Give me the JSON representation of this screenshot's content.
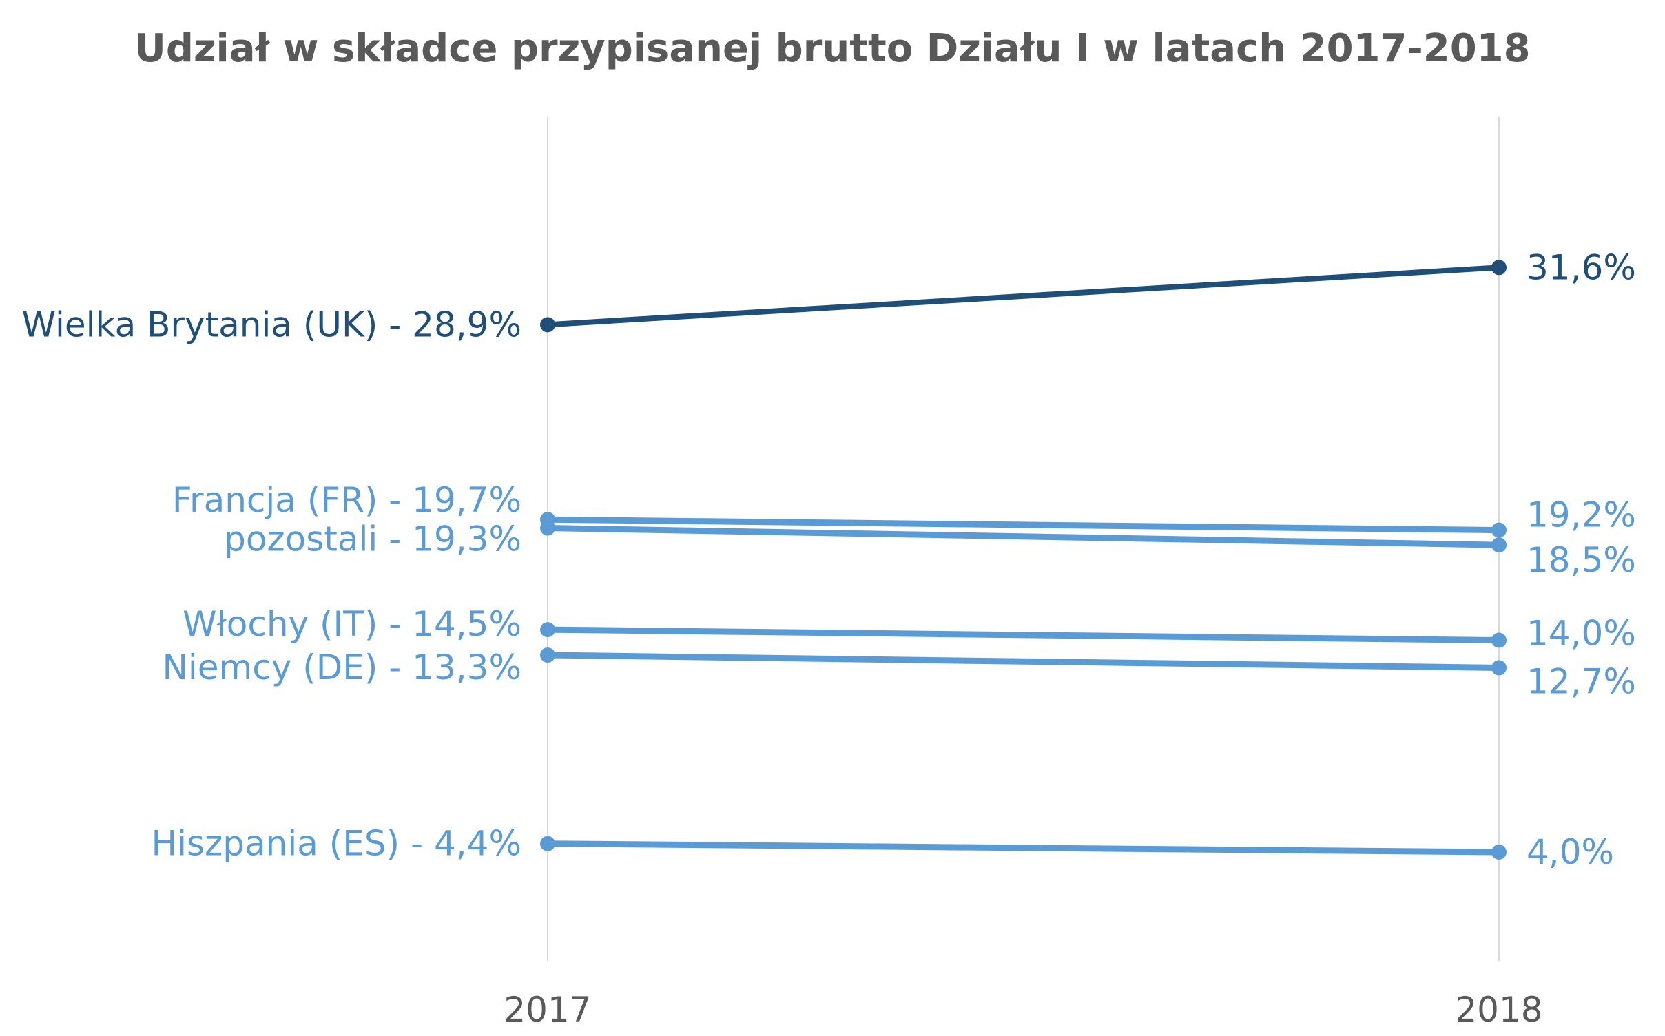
{
  "chart_data": {
    "type": "line",
    "title": "Udział w składce przypisanej brutto Działu I w latach 2017-2018",
    "categories": [
      "2017",
      "2018"
    ],
    "series": [
      {
        "name": "Wielka Brytania (UK)",
        "values": [
          28.9,
          31.6
        ],
        "start_label": "Wielka Brytania (UK) - 28,9%",
        "end_label": "31,6%",
        "color": "#1F4E79"
      },
      {
        "name": "Francja (FR)",
        "values": [
          19.7,
          19.2
        ],
        "start_label": "Francja (FR) - 19,7%",
        "end_label": "19,2%",
        "color": "#5B9BD5"
      },
      {
        "name": "pozostali",
        "values": [
          19.3,
          18.5
        ],
        "start_label": "pozostali - 19,3%",
        "end_label": "18,5%",
        "color": "#5B9BD5"
      },
      {
        "name": "Włochy (IT)",
        "values": [
          14.5,
          14.0
        ],
        "start_label": "Włochy (IT) - 14,5%",
        "end_label": "14,0%",
        "color": "#5B9BD5"
      },
      {
        "name": "Niemcy (DE)",
        "values": [
          13.3,
          12.7
        ],
        "start_label": "Niemcy (DE) - 13,3%",
        "end_label": "12,7%",
        "color": "#5B9BD5"
      },
      {
        "name": "Hiszpania (ES)",
        "values": [
          4.4,
          4.0
        ],
        "start_label": "Hiszpania (ES) - 4,4%",
        "end_label": "4,0%",
        "color": "#5B9BD5"
      }
    ],
    "ylim": [
      0,
      40
    ],
    "grid": "vertical lines at categories",
    "legend": "none"
  }
}
